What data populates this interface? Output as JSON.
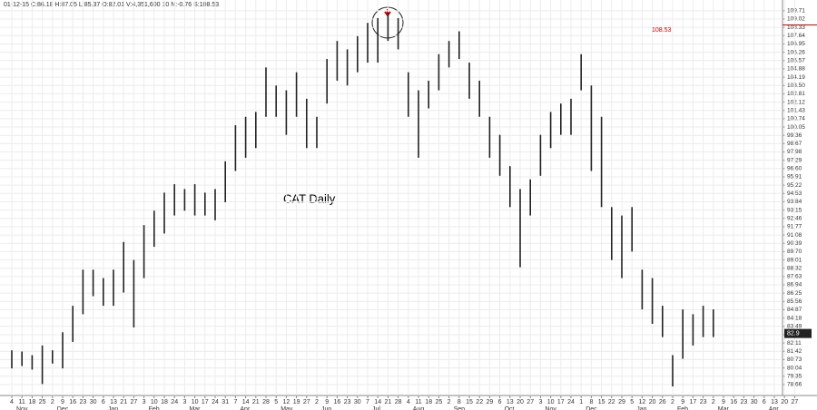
{
  "chart_data": {
    "type": "hlbar",
    "header": "01-12-15 C:86.18 H:87.05 L:85.37 O:82.01 V:4,351,600 10 N:-0.76 S:108.53",
    "title": "CAT Daily",
    "reference_price": 108.53,
    "last_price": 82.9,
    "color": "#222222",
    "grid": true,
    "categories": [
      "4",
      "11",
      "18",
      "25",
      "2",
      "9",
      "16",
      "23",
      "30",
      "6",
      "13",
      "21",
      "27",
      "3",
      "10",
      "18",
      "24",
      "3",
      "10",
      "17",
      "24",
      "31",
      "7",
      "14",
      "21",
      "28",
      "5",
      "12",
      "19",
      "27",
      "2",
      "9",
      "16",
      "23",
      "30",
      "7",
      "14",
      "21",
      "28",
      "4",
      "11",
      "18",
      "25",
      "2",
      "8",
      "15",
      "22",
      "29",
      "6",
      "13",
      "20",
      "27",
      "3",
      "10",
      "17",
      "24",
      "1",
      "8",
      "15",
      "22",
      "29",
      "5",
      "12",
      "20",
      "26",
      "2",
      "9",
      "17",
      "23",
      "2",
      "9",
      "16",
      "23",
      "30",
      "6",
      "13",
      "20",
      "27"
    ],
    "month_labels": [
      "Nov",
      null,
      null,
      null,
      "Dec",
      null,
      null,
      null,
      null,
      "Jan",
      null,
      null,
      null,
      "Feb",
      null,
      null,
      null,
      "Mar",
      null,
      null,
      null,
      null,
      "Apr",
      null,
      null,
      null,
      "May",
      null,
      null,
      null,
      "Jun",
      null,
      null,
      null,
      null,
      "Jul",
      null,
      null,
      null,
      "Aug",
      null,
      null,
      null,
      "Sep",
      null,
      null,
      null,
      null,
      "Oct",
      null,
      null,
      null,
      "Nov",
      null,
      null,
      null,
      "Dec",
      null,
      null,
      null,
      null,
      "Jan",
      null,
      null,
      null,
      "Feb",
      null,
      null,
      null,
      "Mar",
      null,
      null,
      null,
      null,
      "Apr",
      null,
      null,
      null
    ],
    "high": [
      81.5,
      81.4,
      81.1,
      81.9,
      81.5,
      83.0,
      85.2,
      88.2,
      88.2,
      87.5,
      88.2,
      90.5,
      89.0,
      91.9,
      93.1,
      94.6,
      95.3,
      94.9,
      95.3,
      94.6,
      94.9,
      97.2,
      100.2,
      100.9,
      101.3,
      105.0,
      103.5,
      103.1,
      104.6,
      102.4,
      100.9,
      105.7,
      107.2,
      106.5,
      107.6,
      108.7,
      109.1,
      109.6,
      109.1,
      104.6,
      103.1,
      103.9,
      106.1,
      107.2,
      108.0,
      105.4,
      103.9,
      100.9,
      99.4,
      96.8,
      94.9,
      95.7,
      99.4,
      101.3,
      102.0,
      102.4,
      106.1,
      103.5,
      100.9,
      93.4,
      92.7,
      93.4,
      88.2,
      87.5,
      85.2,
      81.1,
      84.9,
      84.5,
      85.2,
      84.9,
      null,
      null,
      null,
      null,
      null,
      null,
      null,
      null
    ],
    "low": [
      80.0,
      80.2,
      79.9,
      78.7,
      80.4,
      80.0,
      82.2,
      84.5,
      86.0,
      85.2,
      85.2,
      86.3,
      83.4,
      87.5,
      90.1,
      91.2,
      92.7,
      93.1,
      92.7,
      92.7,
      92.3,
      93.8,
      96.4,
      97.5,
      98.3,
      100.9,
      100.9,
      99.4,
      100.9,
      98.3,
      98.3,
      102.0,
      103.9,
      103.5,
      104.6,
      105.4,
      105.4,
      107.2,
      106.5,
      100.9,
      97.5,
      101.6,
      103.1,
      105.0,
      105.7,
      102.4,
      100.9,
      97.5,
      96.0,
      93.4,
      88.4,
      92.7,
      96.0,
      98.3,
      99.4,
      99.4,
      103.1,
      96.4,
      93.4,
      89.0,
      87.5,
      89.7,
      84.9,
      83.7,
      82.6,
      78.5,
      80.8,
      81.9,
      82.6,
      82.6,
      null,
      null,
      null,
      null,
      null,
      null,
      null,
      null
    ],
    "ylim": [
      78.2,
      110.0
    ],
    "yticks": [
      78.66,
      79.35,
      80.04,
      80.73,
      81.42,
      82.11,
      {
        "value": 82.8,
        "label": "82.80"
      },
      83.49,
      84.18,
      84.87,
      85.56,
      86.25,
      86.94,
      87.63,
      88.32,
      89.01,
      {
        "value": 89.7,
        "label": "89.70"
      },
      90.39,
      91.08,
      91.77,
      92.46,
      93.15,
      93.84,
      94.53,
      95.22,
      95.91,
      {
        "value": 96.6,
        "label": "96.60"
      },
      97.29,
      97.98,
      98.67,
      99.36,
      100.05,
      100.74,
      101.43,
      102.12,
      102.81,
      {
        "value": 103.5,
        "label": "103.50"
      },
      104.19,
      104.88,
      105.57,
      106.26,
      106.95,
      107.64,
      108.33,
      109.02,
      109.71
    ]
  }
}
